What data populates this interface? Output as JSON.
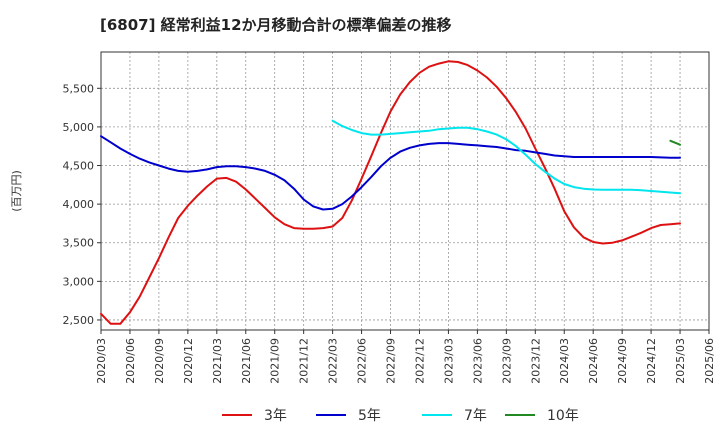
{
  "chart_data": {
    "type": "line",
    "title": "[6807]  経常利益12か月移動合計の標準偏差の推移",
    "ylabel": "(百万円)",
    "xlabel": "",
    "ylim": [
      2370,
      5970
    ],
    "yticks": [
      2500,
      3000,
      3500,
      4000,
      4500,
      5000,
      5500
    ],
    "ytick_labels": [
      "2,500",
      "3,000",
      "3,500",
      "4,000",
      "4,500",
      "5,000",
      "5,500"
    ],
    "x_range": [
      "2020-03",
      "2025-06"
    ],
    "xticks": [
      "2020/03",
      "2020/06",
      "2020/09",
      "2020/12",
      "2021/03",
      "2021/06",
      "2021/09",
      "2021/12",
      "2022/03",
      "2022/06",
      "2022/09",
      "2022/12",
      "2023/03",
      "2023/06",
      "2023/09",
      "2023/12",
      "2024/03",
      "2024/06",
      "2024/09",
      "2024/12",
      "2025/03",
      "2025/06"
    ],
    "grid": true,
    "legend_position": "bottom",
    "series": [
      {
        "name": "3年",
        "color": "#dd1111",
        "x": [
          "2020-03",
          "2020-04",
          "2020-05",
          "2020-06",
          "2020-07",
          "2020-08",
          "2020-09",
          "2020-10",
          "2020-11",
          "2020-12",
          "2021-01",
          "2021-02",
          "2021-03",
          "2021-04",
          "2021-05",
          "2021-06",
          "2021-07",
          "2021-08",
          "2021-09",
          "2021-10",
          "2021-11",
          "2021-12",
          "2022-01",
          "2022-02",
          "2022-03",
          "2022-04",
          "2022-05",
          "2022-06",
          "2022-07",
          "2022-08",
          "2022-09",
          "2022-10",
          "2022-11",
          "2022-12",
          "2023-01",
          "2023-02",
          "2023-03",
          "2023-04",
          "2023-05",
          "2023-06",
          "2023-07",
          "2023-08",
          "2023-09",
          "2023-10",
          "2023-11",
          "2023-12",
          "2024-01",
          "2024-02",
          "2024-03",
          "2024-04",
          "2024-05",
          "2024-06",
          "2024-07",
          "2024-08",
          "2024-09",
          "2024-10",
          "2024-11",
          "2024-12",
          "2025-01",
          "2025-02",
          "2025-03"
        ],
        "y": [
          2580,
          2450,
          2450,
          2600,
          2800,
          3050,
          3300,
          3570,
          3820,
          3980,
          4110,
          4230,
          4330,
          4340,
          4290,
          4190,
          4070,
          3950,
          3830,
          3740,
          3690,
          3680,
          3680,
          3690,
          3710,
          3820,
          4050,
          4330,
          4620,
          4920,
          5200,
          5420,
          5580,
          5700,
          5780,
          5820,
          5850,
          5840,
          5800,
          5730,
          5640,
          5520,
          5370,
          5190,
          4980,
          4720,
          4470,
          4200,
          3910,
          3700,
          3570,
          3510,
          3490,
          3500,
          3530,
          3580,
          3630,
          3690,
          3730,
          3740,
          3750
        ]
      },
      {
        "name": "5年",
        "color": "#0000cc",
        "x": [
          "2020-03",
          "2020-04",
          "2020-05",
          "2020-06",
          "2020-07",
          "2020-08",
          "2020-09",
          "2020-10",
          "2020-11",
          "2020-12",
          "2021-01",
          "2021-02",
          "2021-03",
          "2021-04",
          "2021-05",
          "2021-06",
          "2021-07",
          "2021-08",
          "2021-09",
          "2021-10",
          "2021-11",
          "2021-12",
          "2022-01",
          "2022-02",
          "2022-03",
          "2022-04",
          "2022-05",
          "2022-06",
          "2022-07",
          "2022-08",
          "2022-09",
          "2022-10",
          "2022-11",
          "2022-12",
          "2023-01",
          "2023-02",
          "2023-03",
          "2023-04",
          "2023-05",
          "2023-06",
          "2023-07",
          "2023-08",
          "2023-09",
          "2023-10",
          "2023-11",
          "2023-12",
          "2024-01",
          "2024-02",
          "2024-03",
          "2024-04",
          "2024-05",
          "2024-06",
          "2024-07",
          "2024-08",
          "2024-09",
          "2024-10",
          "2024-11",
          "2024-12",
          "2025-01",
          "2025-02",
          "2025-03"
        ],
        "y": [
          4880,
          4800,
          4720,
          4650,
          4590,
          4540,
          4500,
          4460,
          4430,
          4420,
          4430,
          4450,
          4480,
          4490,
          4490,
          4480,
          4460,
          4430,
          4380,
          4310,
          4200,
          4060,
          3970,
          3930,
          3940,
          4000,
          4100,
          4220,
          4350,
          4490,
          4600,
          4680,
          4730,
          4760,
          4780,
          4790,
          4790,
          4780,
          4770,
          4760,
          4750,
          4740,
          4720,
          4700,
          4690,
          4670,
          4650,
          4630,
          4620,
          4610,
          4610,
          4610,
          4610,
          4610,
          4610,
          4610,
          4610,
          4610,
          4605,
          4600,
          4600
        ]
      },
      {
        "name": "7年",
        "color": "#00e5ee",
        "x": [
          "2022-03",
          "2022-04",
          "2022-05",
          "2022-06",
          "2022-07",
          "2022-08",
          "2022-09",
          "2022-10",
          "2022-11",
          "2022-12",
          "2023-01",
          "2023-02",
          "2023-03",
          "2023-04",
          "2023-05",
          "2023-06",
          "2023-07",
          "2023-08",
          "2023-09",
          "2023-10",
          "2023-11",
          "2023-12",
          "2024-01",
          "2024-02",
          "2024-03",
          "2024-04",
          "2024-05",
          "2024-06",
          "2024-07",
          "2024-08",
          "2024-09",
          "2024-10",
          "2024-11",
          "2024-12",
          "2025-01",
          "2025-02",
          "2025-03"
        ],
        "y": [
          5080,
          5010,
          4960,
          4920,
          4900,
          4900,
          4910,
          4920,
          4930,
          4940,
          4950,
          4970,
          4980,
          4990,
          4990,
          4970,
          4940,
          4900,
          4840,
          4750,
          4640,
          4520,
          4420,
          4330,
          4260,
          4220,
          4200,
          4190,
          4185,
          4185,
          4185,
          4185,
          4180,
          4170,
          4160,
          4150,
          4140
        ]
      },
      {
        "name": "10年",
        "color": "#228822",
        "x": [
          "2025-02",
          "2025-03"
        ],
        "y": [
          4820,
          4770
        ]
      }
    ]
  }
}
